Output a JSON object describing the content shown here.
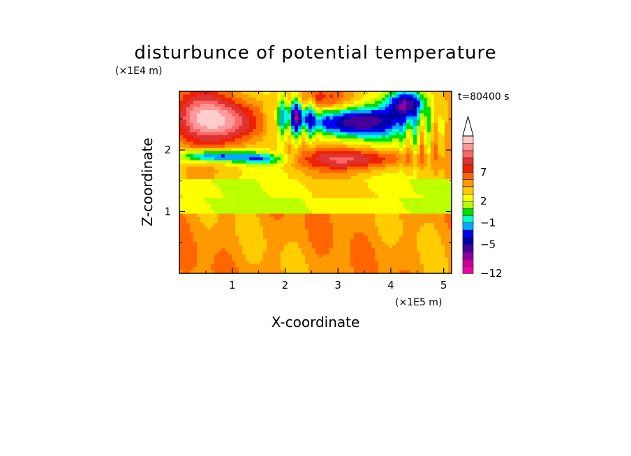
{
  "chart_data": {
    "type": "heatmap",
    "title": "disturbunce of potential temperature",
    "xlabel": "X-coordinate",
    "ylabel": "Z-coordinate",
    "x_unit_label": "(×1E5 m)",
    "y_unit_label": "(×1E4 m)",
    "time_label": "t=80400 s",
    "xlim": [
      0,
      5.15
    ],
    "ylim": [
      0,
      2.95
    ],
    "x_ticks": [
      {
        "value": 1,
        "label": "1"
      },
      {
        "value": 2,
        "label": "2"
      },
      {
        "value": 3,
        "label": "3"
      },
      {
        "value": 4,
        "label": "4"
      },
      {
        "value": 5,
        "label": "5"
      }
    ],
    "y_ticks": [
      {
        "value": 1,
        "label": "1"
      },
      {
        "value": 2,
        "label": "2"
      }
    ],
    "colorbar": {
      "colors": [
        "#ee00aa",
        "#cc0099",
        "#8800aa",
        "#440099",
        "#0000aa",
        "#0000ff",
        "#00aaff",
        "#00ffcc",
        "#00dd00",
        "#bbff00",
        "#ffff00",
        "#ffcc00",
        "#ff9900",
        "#ff6600",
        "#ee2200",
        "#dd3333",
        "#ff6666",
        "#ff9999",
        "#ffcccc"
      ],
      "labels": [
        {
          "index": 0,
          "text": "-12"
        },
        {
          "index": 4,
          "text": "-5"
        },
        {
          "index": 7,
          "text": "-1"
        },
        {
          "index": 10,
          "text": "2"
        },
        {
          "index": 14,
          "text": "7"
        }
      ],
      "extend_top": true
    }
  }
}
